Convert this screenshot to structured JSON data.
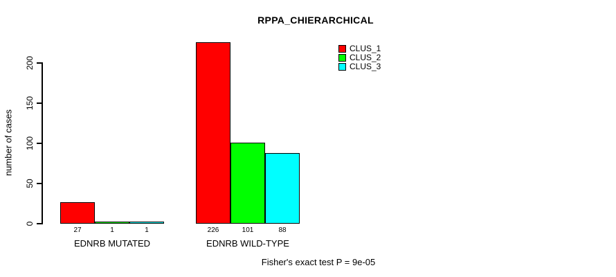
{
  "chart_data": {
    "type": "bar",
    "title": "RPPA_CHIERARCHICAL",
    "xlabel": "",
    "ylabel": "number of cases",
    "groups": [
      "EDNRB MUTATED",
      "EDNRB WILD-TYPE"
    ],
    "series": [
      {
        "name": "CLUS_1",
        "color": "#ff0000",
        "values": [
          27,
          226
        ]
      },
      {
        "name": "CLUS_2",
        "color": "#00ff00",
        "values": [
          1,
          101
        ]
      },
      {
        "name": "CLUS_3",
        "color": "#00ffff",
        "values": [
          1,
          88
        ]
      }
    ],
    "yticks": [
      0,
      50,
      100,
      150,
      200
    ],
    "ylim": [
      0,
      230
    ],
    "bar_value_labels_shown": true,
    "grid": false,
    "legend_position": "top-right",
    "annotation": "Fisher's exact test P = 9e-05",
    "colors": {
      "bar_border": "#000000",
      "axis": "#000000",
      "background": "#ffffff",
      "text": "#000000"
    }
  }
}
